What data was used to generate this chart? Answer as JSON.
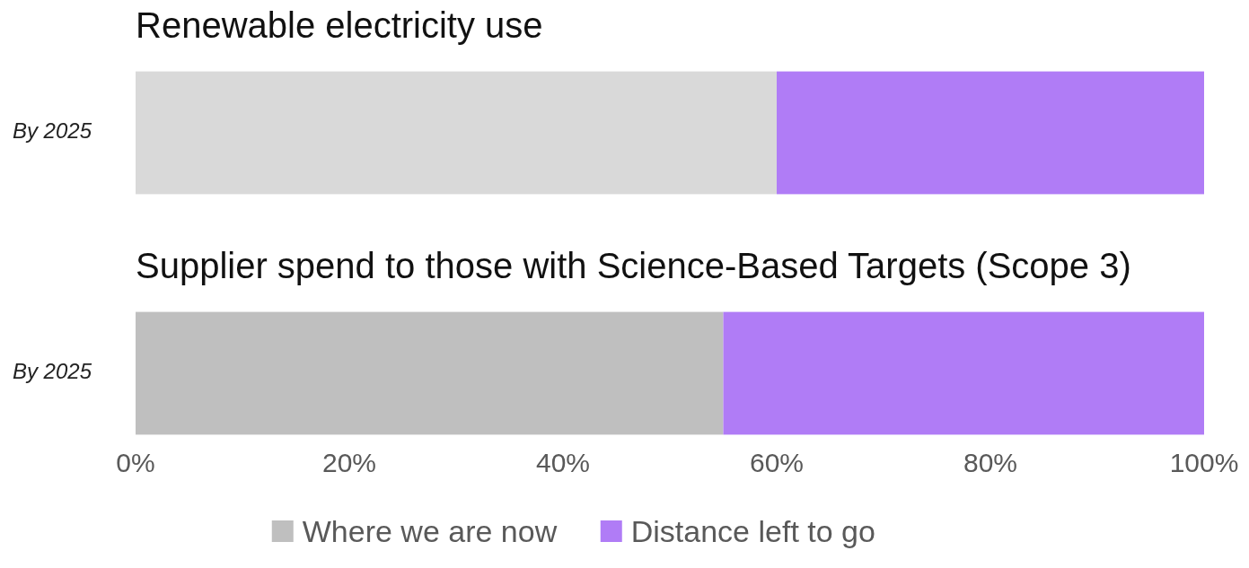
{
  "chart_data": [
    {
      "type": "bar",
      "orientation": "horizontal",
      "stacked": true,
      "title": "Renewable electricity use",
      "categories": [
        "By 2025"
      ],
      "series": [
        {
          "color": "#d9d9d9",
          "values": [
            60
          ]
        },
        {
          "color": "#b07cf6",
          "values": [
            40
          ]
        }
      ],
      "xlim": [
        0,
        100
      ],
      "tick_labels": "y",
      "legend": false
    },
    {
      "type": "bar",
      "orientation": "horizontal",
      "stacked": true,
      "title": "Supplier spend to those with Science-Based Targets (Scope 3)",
      "categories": [
        "By 2025"
      ],
      "series": [
        {
          "name": "Where we are now",
          "color": "#bfbfbf",
          "values": [
            55
          ]
        },
        {
          "name": "Distance left to go",
          "color": "#b07cf6",
          "values": [
            45
          ]
        }
      ],
      "xlim": [
        0,
        100
      ],
      "xticks": [
        {
          "value": 0,
          "label": "0%"
        },
        {
          "value": 20,
          "label": "20%"
        },
        {
          "value": 40,
          "label": "40%"
        },
        {
          "value": 60,
          "label": "60%"
        },
        {
          "value": 80,
          "label": "80%"
        },
        {
          "value": 100,
          "label": "100%"
        }
      ],
      "legend": "bottom"
    }
  ]
}
